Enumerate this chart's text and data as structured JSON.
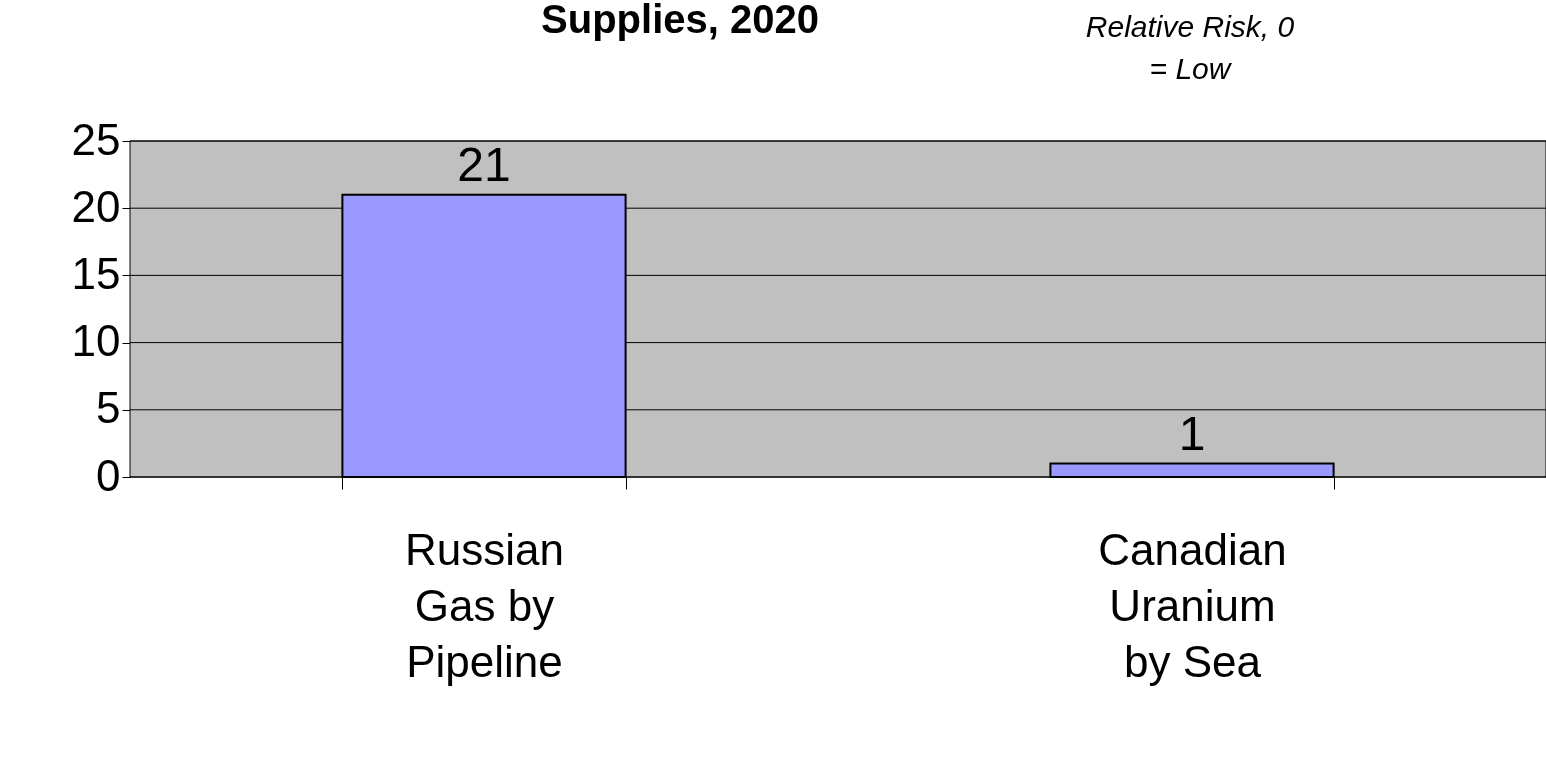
{
  "chart_data": {
    "type": "bar",
    "title": "Supplies, 2020",
    "annotations": [
      "Relative Risk, 0 = Low"
    ],
    "categories": [
      "Russian Gas by Pipeline",
      "Canadian Uranium by Sea"
    ],
    "values": [
      21,
      1
    ],
    "color": "#9999ff",
    "ylim": [
      0,
      25
    ],
    "yticks": [
      0,
      5,
      10,
      15,
      20,
      25
    ],
    "grid": "y",
    "data_labels": true
  }
}
